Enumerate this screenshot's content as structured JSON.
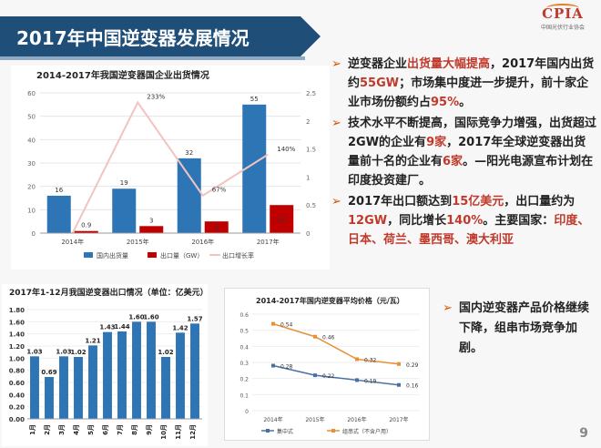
{
  "slide": {
    "title": "2017年中国逆变器发展情况",
    "logo_text": "CPIA",
    "logo_subtext": "中国光伏行业协会",
    "page_number": "9"
  },
  "bullets": [
    {
      "segments": [
        {
          "t": "逆变器企业",
          "h": false
        },
        {
          "t": "出货量大幅提高",
          "h": true
        },
        {
          "t": "，2017年国内出货约",
          "h": false
        },
        {
          "t": "55GW",
          "h": true
        },
        {
          "t": "；市场集中度进一步提升，前十家企业市场份额约占",
          "h": false
        },
        {
          "t": "95%",
          "h": true
        },
        {
          "t": "。",
          "h": false
        }
      ]
    },
    {
      "segments": [
        {
          "t": "技术水平不断提高，国际竞争力增强，出货超过2GW的企业有",
          "h": false
        },
        {
          "t": "9家",
          "h": true
        },
        {
          "t": "，2017年全球逆变器出货量前十名的企业有",
          "h": false
        },
        {
          "t": "6家",
          "h": true
        },
        {
          "t": "。—阳光电源宣布计划在印度投资建厂。",
          "h": false
        }
      ]
    },
    {
      "segments": [
        {
          "t": "2017年出口额达到",
          "h": false
        },
        {
          "t": "15亿美元",
          "h": true
        },
        {
          "t": "，出口量约为",
          "h": false
        },
        {
          "t": "12GW",
          "h": true
        },
        {
          "t": "，同比增长",
          "h": false
        },
        {
          "t": "140%",
          "h": true
        },
        {
          "t": "。主要国家：",
          "h": false
        },
        {
          "t": "印度、日本、荷兰、墨西哥、澳大利亚",
          "h": true
        }
      ]
    }
  ],
  "bullet4": "国内逆变器产品价格继续下降，组串市场竞争加剧。",
  "chart_data": [
    {
      "type": "bar",
      "title": "2014-2017年我国逆变器国企业出货情况",
      "categories": [
        "2014年",
        "2015年",
        "2016年",
        "2017年"
      ],
      "series": [
        {
          "name": "国内出货量",
          "values": [
            16,
            19,
            32,
            55
          ],
          "color": "#2e75b6"
        },
        {
          "name": "出口量（GW）",
          "values": [
            0.9,
            3,
            5,
            12
          ],
          "color": "#c00000"
        },
        {
          "name": "出口增长率",
          "values": [
            null,
            2.33,
            0.67,
            1.4
          ],
          "labels": [
            "",
            "233%",
            "67%",
            "140%"
          ],
          "color": "#f4cccc",
          "axis": "right"
        }
      ],
      "bar_labels": [
        [
          "16",
          "19",
          "32",
          "55"
        ],
        [
          "0.9",
          "3",
          "5",
          "12"
        ]
      ],
      "ylim": [
        0,
        60
      ],
      "yticks": [
        "0",
        "10",
        "20",
        "30",
        "40",
        "50",
        "60"
      ],
      "y2lim": [
        0,
        2.5
      ],
      "y2ticks": [
        "0",
        "0.5",
        "1",
        "1.5",
        "2",
        "2.5"
      ]
    },
    {
      "type": "bar",
      "title": "2017年1-12月我国逆变器出口情况（单位：亿美元）",
      "categories": [
        "1月",
        "2月",
        "3月",
        "4月",
        "5月",
        "6月",
        "7月",
        "8月",
        "9月",
        "10月",
        "11月",
        "12月"
      ],
      "values": [
        1.03,
        0.69,
        1.03,
        1.02,
        1.21,
        1.43,
        1.44,
        1.6,
        1.6,
        1.02,
        1.42,
        1.57
      ],
      "value_labels": [
        "1.03",
        "0.69",
        "1.03",
        "1.02",
        "1.21",
        "1.43",
        "1.44",
        "1.60",
        "1.60",
        "1.02",
        "1.42",
        "1.57"
      ],
      "ylim": [
        0,
        1.8
      ],
      "yticks": [
        "0.00",
        "0.20",
        "0.40",
        "0.60",
        "0.80",
        "1.00",
        "1.20",
        "1.40",
        "1.60",
        "1.80"
      ],
      "color": "#2e75b6"
    },
    {
      "type": "line",
      "title": "2014-2017年国内逆变器平均价格（元/瓦）",
      "categories": [
        "2014年",
        "2015年",
        "2016年",
        "2017年"
      ],
      "series": [
        {
          "name": "集中式",
          "values": [
            0.28,
            0.22,
            0.19,
            0.16
          ],
          "labels": [
            "0.28",
            "0.22",
            "0.19",
            "0.16"
          ],
          "color": "#4a6fa5"
        },
        {
          "name": "组串式（不含户用）",
          "values": [
            0.54,
            0.46,
            0.32,
            0.29
          ],
          "labels": [
            "0.54",
            "0.46",
            "0.32",
            "0.29"
          ],
          "color": "#e69138"
        }
      ],
      "ylim": [
        0,
        0.6
      ],
      "yticks": [
        "0",
        "0.1",
        "0.2",
        "0.3",
        "0.4",
        "0.5",
        "0.6"
      ]
    }
  ]
}
